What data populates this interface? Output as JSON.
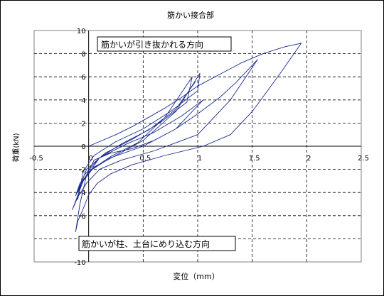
{
  "chart_data": {
    "type": "line",
    "title": "筋かい接合部",
    "xlabel": "変位（mm）",
    "ylabel": "荷重(kN)",
    "xlim": [
      -0.5,
      2.5
    ],
    "ylim": [
      -10,
      10
    ],
    "xticks": [
      "-0.5",
      "0",
      "0.5",
      "1",
      "1.5",
      "2",
      "2.5"
    ],
    "yticks": [
      "-10",
      "-8",
      "-6",
      "-4",
      "-2",
      "0",
      "2",
      "4",
      "6",
      "8",
      "10"
    ],
    "grid": true,
    "grid_style": "dashed",
    "line_color": "#1a2a8c",
    "annotations": [
      {
        "text": "筋かいが引き抜かれる方向"
      },
      {
        "text": "筋かいが柱、土台にめり込む方向"
      }
    ],
    "series": [
      {
        "x": [
          0,
          0.1,
          0.25,
          0.4,
          0.55,
          0.7,
          0.85,
          1.0,
          1.2,
          1.4,
          1.6,
          1.8,
          1.95,
          1.75,
          1.5,
          1.3,
          1.05,
          0.7,
          0.4,
          0.2,
          0.08,
          0.0,
          -0.05,
          -0.1,
          -0.12,
          -0.08,
          -0.02,
          0.05,
          0.2,
          0.4,
          0.6,
          0.8,
          1.0,
          1.2,
          1.35,
          1.55,
          1.3,
          1.0,
          0.6,
          0.3,
          0.1,
          -0.02,
          -0.1,
          -0.15,
          -0.05,
          0.1,
          0.35,
          0.6,
          0.85,
          1.05,
          0.8,
          0.5,
          0.2,
          0.0,
          -0.08,
          -0.1,
          -0.05,
          0.05,
          0.25,
          0.5,
          0.75,
          1.0,
          1.02,
          0.8,
          0.5,
          0.25,
          0.05,
          -0.05,
          -0.1,
          -0.02,
          0.15,
          0.4,
          0.65,
          0.9,
          0.95,
          0.7,
          0.45,
          0.2,
          0.03,
          -0.08,
          -0.12,
          -0.04,
          0.1,
          0.3,
          0.55,
          0.8,
          0.98
        ],
        "y": [
          0,
          0.4,
          1.0,
          1.7,
          2.5,
          3.3,
          4.2,
          5.2,
          6.2,
          7.2,
          8.0,
          8.6,
          8.9,
          6.2,
          3.0,
          1.0,
          0.0,
          -0.8,
          -1.6,
          -2.4,
          -3.2,
          -4.2,
          -5.4,
          -6.5,
          -7.4,
          -5.0,
          -2.5,
          -1.2,
          -0.6,
          -0.2,
          0.5,
          1.5,
          2.8,
          4.2,
          5.5,
          7.5,
          4.0,
          1.0,
          -0.4,
          -1.2,
          -2.0,
          -3.2,
          -4.4,
          -5.5,
          -3.0,
          -1.0,
          0.2,
          1.2,
          2.6,
          4.0,
          1.5,
          0.0,
          -1.0,
          -2.2,
          -3.4,
          -4.6,
          -2.2,
          -0.8,
          0.4,
          1.5,
          3.0,
          4.8,
          6.3,
          3.0,
          0.5,
          -0.8,
          -1.8,
          -3.0,
          -4.0,
          -2.0,
          -0.6,
          0.6,
          2.0,
          3.8,
          6.0,
          2.5,
          0.3,
          -0.9,
          -2.0,
          -3.2,
          -4.3,
          -2.5,
          -1.0,
          0.2,
          1.4,
          3.2,
          5.6
        ]
      }
    ]
  }
}
